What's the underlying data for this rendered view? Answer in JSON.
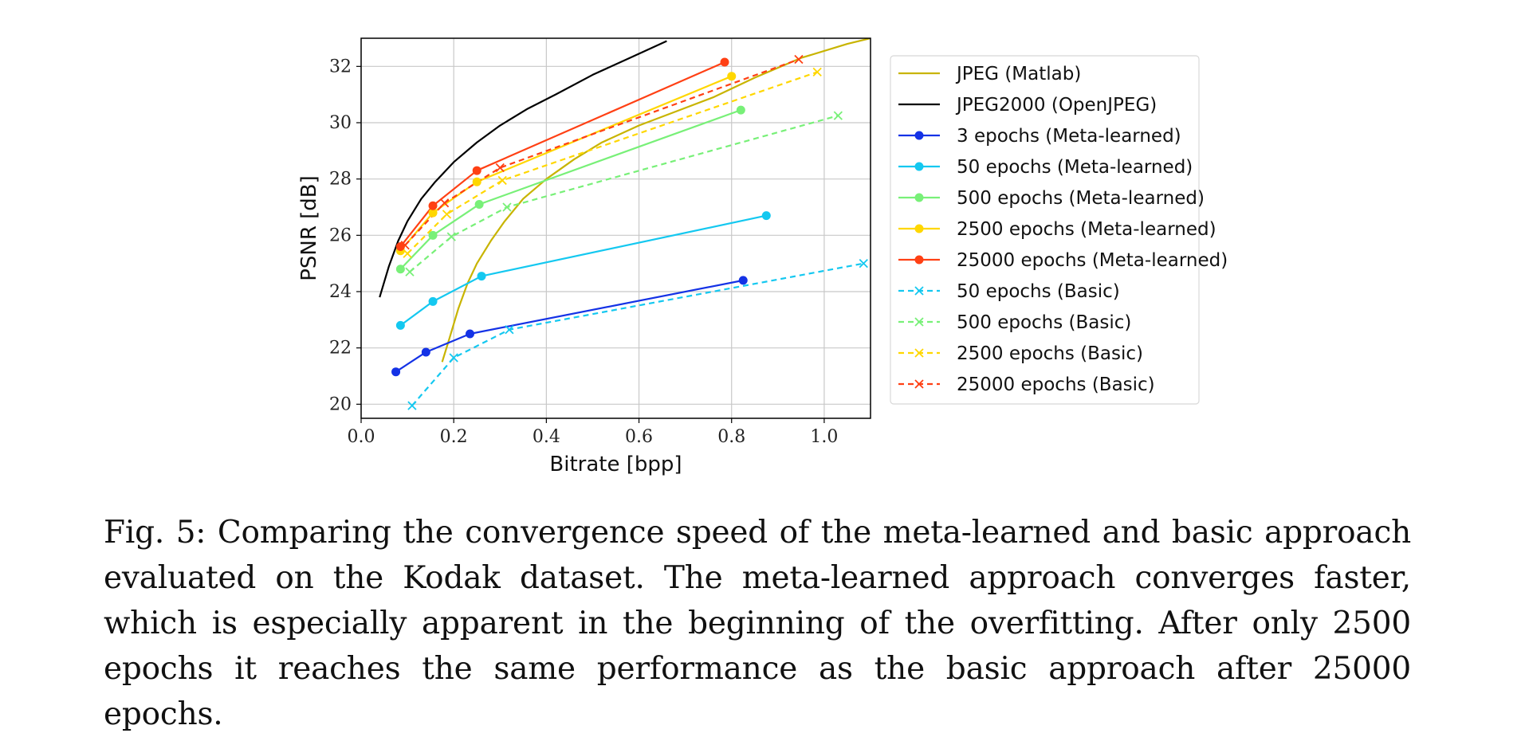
{
  "chart_data": {
    "type": "line",
    "title": "",
    "xlabel": "Bitrate [bpp]",
    "ylabel": "PSNR [dB]",
    "xlim": [
      0.0,
      1.1
    ],
    "ylim": [
      19.5,
      33.0
    ],
    "xticks": [
      "0.0",
      "0.2",
      "0.4",
      "0.6",
      "0.8",
      "1.0"
    ],
    "xtick_values": [
      0.0,
      0.2,
      0.4,
      0.6,
      0.8,
      1.0
    ],
    "yticks": [
      "20",
      "22",
      "24",
      "26",
      "28",
      "30",
      "32"
    ],
    "ytick_values": [
      20,
      22,
      24,
      26,
      28,
      30,
      32
    ],
    "grid": true,
    "legend_position": "right, outside plot",
    "series": [
      {
        "name": "JPEG (Matlab)",
        "color": "#c8b400",
        "style": "solid",
        "marker": "none",
        "x": [
          0.175,
          0.19,
          0.21,
          0.23,
          0.25,
          0.28,
          0.31,
          0.35,
          0.4,
          0.46,
          0.52,
          0.6,
          0.68,
          0.76,
          0.85,
          0.95,
          1.05,
          1.1
        ],
        "y": [
          21.5,
          22.3,
          23.4,
          24.3,
          25.0,
          25.8,
          26.5,
          27.3,
          28.0,
          28.7,
          29.3,
          29.9,
          30.4,
          30.9,
          31.6,
          32.3,
          32.8,
          33.0
        ]
      },
      {
        "name": "JPEG2000 (OpenJPEG)",
        "color": "#000000",
        "style": "solid",
        "marker": "none",
        "x": [
          0.04,
          0.06,
          0.08,
          0.1,
          0.13,
          0.16,
          0.2,
          0.25,
          0.3,
          0.36,
          0.42,
          0.5,
          0.58,
          0.66
        ],
        "y": [
          23.8,
          24.9,
          25.8,
          26.5,
          27.3,
          27.9,
          28.6,
          29.3,
          29.9,
          30.5,
          31.0,
          31.7,
          32.3,
          32.9
        ]
      },
      {
        "name": "3 epochs (Meta-learned)",
        "color": "#1432e6",
        "style": "solid",
        "marker": "circle",
        "x": [
          0.075,
          0.14,
          0.235,
          0.825
        ],
        "y": [
          21.15,
          21.85,
          22.5,
          24.4
        ]
      },
      {
        "name": "50 epochs (Meta-learned)",
        "color": "#14c8f0",
        "style": "solid",
        "marker": "circle",
        "x": [
          0.085,
          0.155,
          0.26,
          0.875
        ],
        "y": [
          22.8,
          23.65,
          24.55,
          26.7
        ]
      },
      {
        "name": "500 epochs (Meta-learned)",
        "color": "#78f078",
        "style": "solid",
        "marker": "circle",
        "x": [
          0.085,
          0.155,
          0.255,
          0.82
        ],
        "y": [
          24.8,
          26.0,
          27.1,
          30.45
        ]
      },
      {
        "name": "2500 epochs (Meta-learned)",
        "color": "#ffd700",
        "style": "solid",
        "marker": "circle",
        "x": [
          0.085,
          0.155,
          0.25,
          0.8
        ],
        "y": [
          25.45,
          26.8,
          27.9,
          31.65
        ]
      },
      {
        "name": "25000 epochs (Meta-learned)",
        "color": "#ff4014",
        "style": "solid",
        "marker": "circle",
        "x": [
          0.085,
          0.155,
          0.25,
          0.785
        ],
        "y": [
          25.6,
          27.05,
          28.3,
          32.15
        ]
      },
      {
        "name": "50 epochs (Basic)",
        "color": "#14c8f0",
        "style": "dashed",
        "marker": "x",
        "x": [
          0.11,
          0.2,
          0.32,
          1.085
        ],
        "y": [
          19.95,
          21.65,
          22.65,
          25.0
        ]
      },
      {
        "name": "500 epochs (Basic)",
        "color": "#78f078",
        "style": "dashed",
        "marker": "x",
        "x": [
          0.105,
          0.195,
          0.315,
          1.03
        ],
        "y": [
          24.7,
          25.95,
          27.0,
          30.25
        ]
      },
      {
        "name": "2500 epochs (Basic)",
        "color": "#ffd700",
        "style": "dashed",
        "marker": "x",
        "x": [
          0.1,
          0.185,
          0.305,
          0.985
        ],
        "y": [
          25.35,
          26.75,
          27.95,
          31.8
        ]
      },
      {
        "name": "25000 epochs (Basic)",
        "color": "#ff4014",
        "style": "dashed",
        "marker": "x",
        "x": [
          0.095,
          0.18,
          0.3,
          0.945
        ],
        "y": [
          25.65,
          27.15,
          28.4,
          32.25
        ]
      }
    ]
  },
  "caption": "Fig. 5: Comparing the convergence speed of the meta-learned and basic approach evaluated on the Kodak dataset. The meta-learned approach converges faster, which is especially apparent in the beginning of the overfitting. After only 2500 epochs it reaches the same performance as the basic approach after 25000 epochs."
}
